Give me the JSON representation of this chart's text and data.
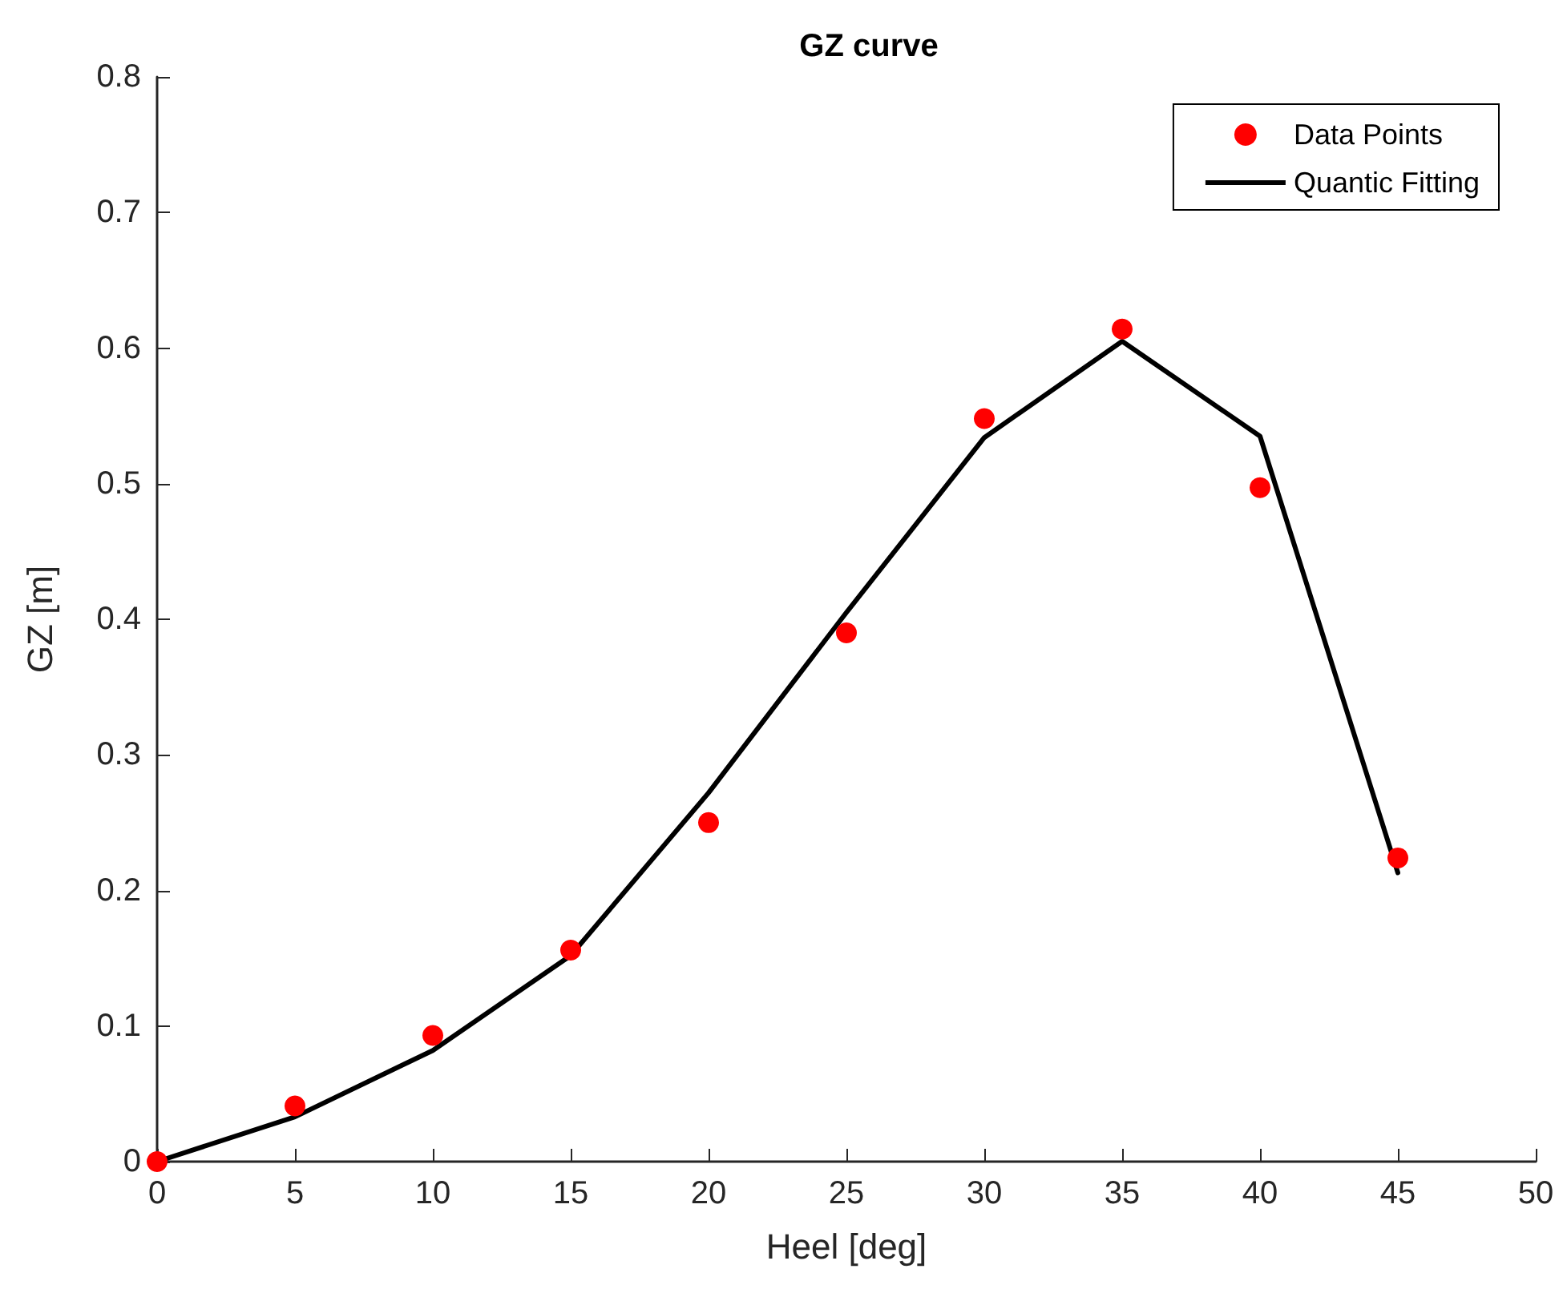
{
  "chart_data": {
    "type": "scatter",
    "title": "GZ curve",
    "xlabel": "Heel [deg]",
    "ylabel": "GZ [m]",
    "xlim": [
      0,
      50
    ],
    "xticks": [
      0,
      5,
      10,
      15,
      20,
      25,
      30,
      35,
      40,
      45,
      50
    ],
    "ylim": [
      0,
      0.8
    ],
    "yticks": [
      0,
      0.1,
      0.2,
      0.3,
      0.4,
      0.5,
      0.6,
      0.7,
      0.8
    ],
    "grid": false,
    "legend": "top right",
    "series": [
      {
        "name": "Data Points",
        "marker": "circle",
        "color": "#ff0000",
        "x": [
          0,
          5,
          10,
          15,
          20,
          25,
          30,
          35,
          40,
          45
        ],
        "values": [
          0,
          0.041,
          0.093,
          0.156,
          0.25,
          0.39,
          0.548,
          0.614,
          0.497,
          0.224
        ]
      },
      {
        "name": "Quantic Fitting",
        "type": "line",
        "marker": "none",
        "line_style": "solid",
        "color": "#000000",
        "x": [
          0,
          5,
          10,
          15,
          20,
          25,
          30,
          35,
          40,
          45
        ],
        "values": [
          0,
          0.033,
          0.082,
          0.152,
          0.272,
          0.405,
          0.534,
          0.605,
          0.535,
          0.213
        ]
      }
    ]
  }
}
